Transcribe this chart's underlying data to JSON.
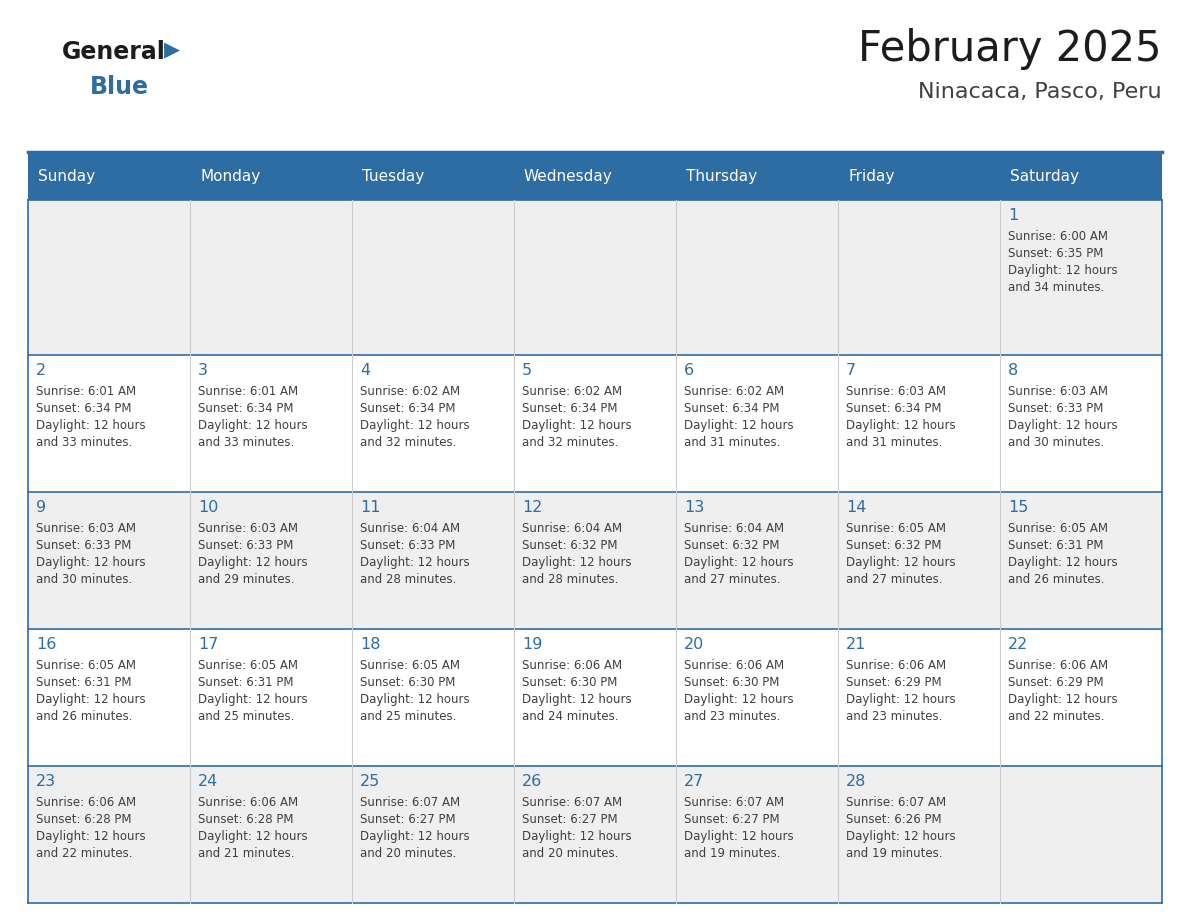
{
  "title": "February 2025",
  "subtitle": "Ninacaca, Pasco, Peru",
  "header_color": "#2E6DA4",
  "header_text_color": "#FFFFFF",
  "cell_bg_gray": "#EFEFEF",
  "cell_bg_white": "#FFFFFF",
  "day_number_color": "#2E6DA4",
  "info_text_color": "#404040",
  "border_color": "#2E6DA4",
  "days_of_week": [
    "Sunday",
    "Monday",
    "Tuesday",
    "Wednesday",
    "Thursday",
    "Friday",
    "Saturday"
  ],
  "weeks": [
    [
      null,
      null,
      null,
      null,
      null,
      null,
      1
    ],
    [
      2,
      3,
      4,
      5,
      6,
      7,
      8
    ],
    [
      9,
      10,
      11,
      12,
      13,
      14,
      15
    ],
    [
      16,
      17,
      18,
      19,
      20,
      21,
      22
    ],
    [
      23,
      24,
      25,
      26,
      27,
      28,
      null
    ]
  ],
  "row_bg": [
    "#EFEFEF",
    "#FFFFFF",
    "#EFEFEF",
    "#FFFFFF",
    "#EFEFEF"
  ],
  "day_data": {
    "1": {
      "sunrise": "6:00 AM",
      "sunset": "6:35 PM",
      "daylight": "12 hours and 34 minutes"
    },
    "2": {
      "sunrise": "6:01 AM",
      "sunset": "6:34 PM",
      "daylight": "12 hours and 33 minutes"
    },
    "3": {
      "sunrise": "6:01 AM",
      "sunset": "6:34 PM",
      "daylight": "12 hours and 33 minutes"
    },
    "4": {
      "sunrise": "6:02 AM",
      "sunset": "6:34 PM",
      "daylight": "12 hours and 32 minutes"
    },
    "5": {
      "sunrise": "6:02 AM",
      "sunset": "6:34 PM",
      "daylight": "12 hours and 32 minutes"
    },
    "6": {
      "sunrise": "6:02 AM",
      "sunset": "6:34 PM",
      "daylight": "12 hours and 31 minutes"
    },
    "7": {
      "sunrise": "6:03 AM",
      "sunset": "6:34 PM",
      "daylight": "12 hours and 31 minutes"
    },
    "8": {
      "sunrise": "6:03 AM",
      "sunset": "6:33 PM",
      "daylight": "12 hours and 30 minutes"
    },
    "9": {
      "sunrise": "6:03 AM",
      "sunset": "6:33 PM",
      "daylight": "12 hours and 30 minutes"
    },
    "10": {
      "sunrise": "6:03 AM",
      "sunset": "6:33 PM",
      "daylight": "12 hours and 29 minutes"
    },
    "11": {
      "sunrise": "6:04 AM",
      "sunset": "6:33 PM",
      "daylight": "12 hours and 28 minutes"
    },
    "12": {
      "sunrise": "6:04 AM",
      "sunset": "6:32 PM",
      "daylight": "12 hours and 28 minutes"
    },
    "13": {
      "sunrise": "6:04 AM",
      "sunset": "6:32 PM",
      "daylight": "12 hours and 27 minutes"
    },
    "14": {
      "sunrise": "6:05 AM",
      "sunset": "6:32 PM",
      "daylight": "12 hours and 27 minutes"
    },
    "15": {
      "sunrise": "6:05 AM",
      "sunset": "6:31 PM",
      "daylight": "12 hours and 26 minutes"
    },
    "16": {
      "sunrise": "6:05 AM",
      "sunset": "6:31 PM",
      "daylight": "12 hours and 26 minutes"
    },
    "17": {
      "sunrise": "6:05 AM",
      "sunset": "6:31 PM",
      "daylight": "12 hours and 25 minutes"
    },
    "18": {
      "sunrise": "6:05 AM",
      "sunset": "6:30 PM",
      "daylight": "12 hours and 25 minutes"
    },
    "19": {
      "sunrise": "6:06 AM",
      "sunset": "6:30 PM",
      "daylight": "12 hours and 24 minutes"
    },
    "20": {
      "sunrise": "6:06 AM",
      "sunset": "6:30 PM",
      "daylight": "12 hours and 23 minutes"
    },
    "21": {
      "sunrise": "6:06 AM",
      "sunset": "6:29 PM",
      "daylight": "12 hours and 23 minutes"
    },
    "22": {
      "sunrise": "6:06 AM",
      "sunset": "6:29 PM",
      "daylight": "12 hours and 22 minutes"
    },
    "23": {
      "sunrise": "6:06 AM",
      "sunset": "6:28 PM",
      "daylight": "12 hours and 22 minutes"
    },
    "24": {
      "sunrise": "6:06 AM",
      "sunset": "6:28 PM",
      "daylight": "12 hours and 21 minutes"
    },
    "25": {
      "sunrise": "6:07 AM",
      "sunset": "6:27 PM",
      "daylight": "12 hours and 20 minutes"
    },
    "26": {
      "sunrise": "6:07 AM",
      "sunset": "6:27 PM",
      "daylight": "12 hours and 20 minutes"
    },
    "27": {
      "sunrise": "6:07 AM",
      "sunset": "6:27 PM",
      "daylight": "12 hours and 19 minutes"
    },
    "28": {
      "sunrise": "6:07 AM",
      "sunset": "6:26 PM",
      "daylight": "12 hours and 19 minutes"
    }
  }
}
